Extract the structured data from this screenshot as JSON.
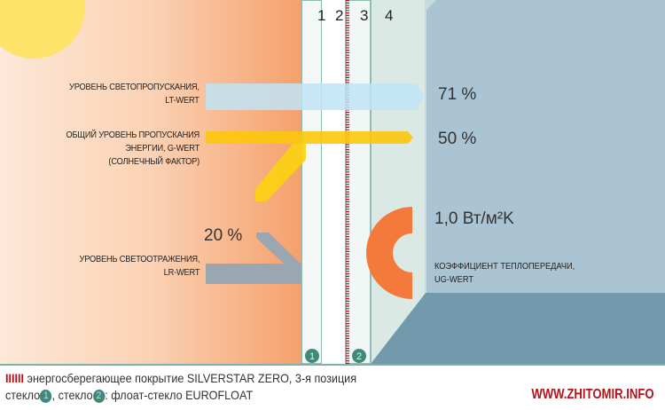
{
  "pane_numbers": [
    "1",
    "2",
    "3",
    "4"
  ],
  "light_transmission": {
    "label_line1": "УРОВЕНЬ СВЕТОПРОПУСКАНИЯ,",
    "label_line2": "LT-WERT",
    "value": "71 %"
  },
  "energy_transmission": {
    "label_line1": "ОБЩИЙ УРОВЕНЬ ПРОПУСКАНИЯ",
    "label_line2": "ЭНЕРГИИ, G-WERT",
    "label_line3": "(СОЛНЕЧНЫЙ ФАКТОР)",
    "value": "50 %"
  },
  "light_reflection": {
    "label_line1": "УРОВЕНЬ СВЕТООТРАЖЕНИЯ,",
    "label_line2": "LR-WERT",
    "value": "20 %"
  },
  "heat_transfer": {
    "value": "1,0 Вт/м²K",
    "label_line1": "КОЭФФИЦИЕНТ ТЕПЛОПЕРЕДАЧИ,",
    "label_line2": "UG-WERT"
  },
  "glass_badges": [
    "1",
    "2"
  ],
  "footer": {
    "coating_marker": "IIIIII",
    "line1": "энергосберегающее покрытие SILVERSTAR ZERO, 3-я позиция",
    "line2_a": "стекло",
    "line2_b": ", стекло",
    "line2_c": ": флоат-стекло EUROFLOAT",
    "site": "WWW.ZHITOMIR.INFO"
  },
  "colors": {
    "sun": "#fde36a",
    "light_arrow": "#c5e6f6",
    "energy_arrow": "#fcc70a",
    "reflection_arrow": "#9aa6b0",
    "heat_symbol": "#f47a3c",
    "coating": "#9b1b2a",
    "wall": "#aac4d3",
    "floor": "#7399ad",
    "site": "#b5121b"
  }
}
